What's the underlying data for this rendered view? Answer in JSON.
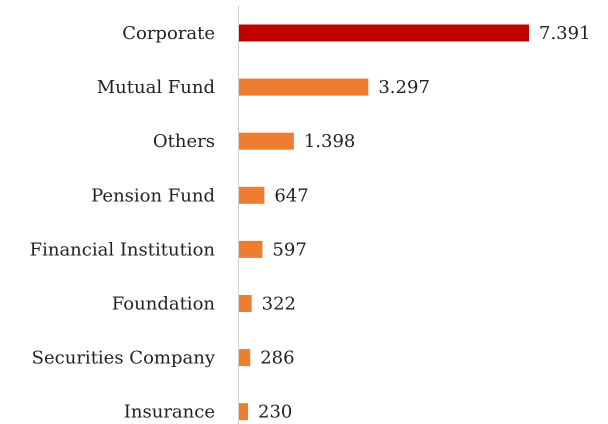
{
  "chart_data": {
    "type": "bar",
    "orientation": "horizontal",
    "categories": [
      "Corporate",
      "Mutual Fund",
      "Others",
      "Pension Fund",
      "Financial Institution",
      "Foundation",
      "Securities Company",
      "Insurance"
    ],
    "values": [
      7391,
      3297,
      1398,
      647,
      597,
      322,
      286,
      230
    ],
    "value_labels": [
      "7.391",
      "3.297",
      "1.398",
      "647",
      "597",
      "322",
      "286",
      "230"
    ],
    "colors": [
      "#c00000",
      "#ed7d31",
      "#ed7d31",
      "#ed7d31",
      "#ed7d31",
      "#ed7d31",
      "#ed7d31",
      "#ed7d31"
    ]
  }
}
